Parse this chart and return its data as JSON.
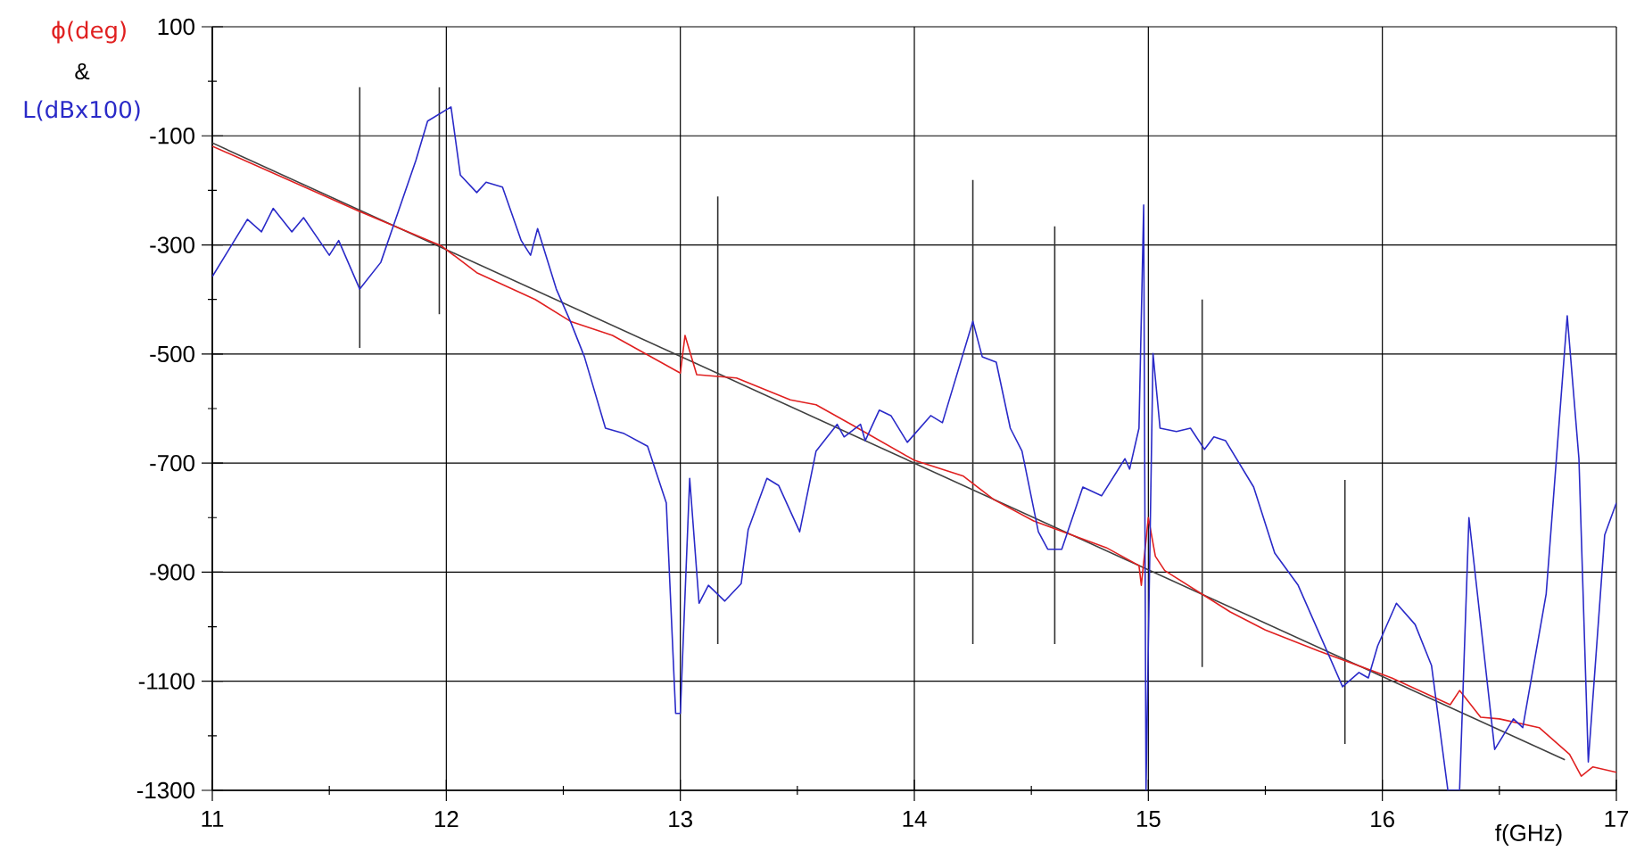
{
  "chart_data": {
    "type": "line",
    "xlabel": "f(GHz)",
    "ylabel": "&",
    "xlim": [
      11,
      17
    ],
    "ylim": [
      -1300,
      100
    ],
    "grid": true,
    "xticks": [
      11,
      {
        "value": 11.5,
        "label": null
      },
      12,
      {
        "value": 12.5,
        "label": null
      },
      13,
      {
        "value": 13.5,
        "label": null
      },
      14,
      {
        "value": 14.5,
        "label": null
      },
      15,
      {
        "value": 15.5,
        "label": null
      },
      16,
      {
        "value": 16.5,
        "label": null
      },
      17
    ],
    "yticks": [
      -1300,
      {
        "value": -1200,
        "label": null
      },
      -1100,
      {
        "value": -1000,
        "label": null
      },
      -900,
      {
        "value": -800,
        "label": null
      },
      -700,
      {
        "value": -600,
        "label": null
      },
      -500,
      {
        "value": -400,
        "label": null
      },
      -300,
      {
        "value": -200,
        "label": null
      },
      -100,
      {
        "value": 0,
        "label": null
      },
      100
    ],
    "series": [
      {
        "color": "#303030",
        "x": [
          11.63,
          11.63
        ],
        "values": [
          -11,
          -489
        ]
      },
      {
        "color": "#303030",
        "x": [
          11.97,
          11.97
        ],
        "values": [
          -11,
          -427
        ]
      },
      {
        "color": "#303030",
        "x": [
          13.16,
          13.16
        ],
        "values": [
          -211,
          -1032
        ]
      },
      {
        "color": "#303030",
        "x": [
          14.25,
          14.25
        ],
        "values": [
          -181,
          -1032
        ]
      },
      {
        "color": "#303030",
        "x": [
          14.6,
          14.6
        ],
        "values": [
          -266,
          -1032
        ]
      },
      {
        "color": "#303030",
        "x": [
          15.23,
          15.23
        ],
        "values": [
          -400,
          -1074
        ]
      },
      {
        "color": "#303030",
        "x": [
          15.84,
          15.84
        ],
        "values": [
          -731,
          -1215
        ]
      },
      {
        "color": "#404040",
        "x": [
          11,
          16.78
        ],
        "values": [
          -113,
          -1244
        ]
      },
      {
        "name": "ϕ(deg)",
        "color": "#e02020",
        "x": [
          11.0,
          11.62,
          11.98,
          12.13,
          12.38,
          12.53,
          12.71,
          13.0,
          13.02,
          13.07,
          13.24,
          13.47,
          13.58,
          13.73,
          14.0,
          14.21,
          14.34,
          14.51,
          14.82,
          14.96,
          14.97,
          15.0,
          15.03,
          15.07,
          15.35,
          15.5,
          15.73,
          16.04,
          16.29,
          16.33,
          16.42,
          16.5,
          16.67,
          16.8,
          16.85,
          16.9,
          17.0
        ],
        "values": [
          -119,
          -237,
          -302,
          -351,
          -400,
          -440,
          -466,
          -535,
          -466,
          -538,
          -544,
          -584,
          -593,
          -629,
          -695,
          -724,
          -767,
          -806,
          -855,
          -888,
          -924,
          -800,
          -871,
          -897,
          -973,
          -1006,
          -1045,
          -1094,
          -1143,
          -1117,
          -1166,
          -1169,
          -1185,
          -1234,
          -1274,
          -1257,
          -1267
        ]
      },
      {
        "name": "L(dBx100)",
        "color": "#2a2ac8",
        "x": [
          11.0,
          11.15,
          11.21,
          11.26,
          11.34,
          11.39,
          11.5,
          11.54,
          11.63,
          11.72,
          11.87,
          11.92,
          12.02,
          12.06,
          12.13,
          12.17,
          12.24,
          12.32,
          12.36,
          12.39,
          12.47,
          12.53,
          12.59,
          12.68,
          12.76,
          12.86,
          12.94,
          12.98,
          13.0,
          13.04,
          13.08,
          13.12,
          13.19,
          13.26,
          13.29,
          13.37,
          13.42,
          13.51,
          13.58,
          13.67,
          13.7,
          13.77,
          13.79,
          13.85,
          13.9,
          13.97,
          14.07,
          14.12,
          14.25,
          14.29,
          14.35,
          14.41,
          14.46,
          14.53,
          14.57,
          14.63,
          14.72,
          14.8,
          14.9,
          14.92,
          14.96,
          14.98,
          14.99,
          15.02,
          15.05,
          15.12,
          15.18,
          15.24,
          15.28,
          15.33,
          15.45,
          15.54,
          15.64,
          15.73,
          15.83,
          15.9,
          15.94,
          15.98,
          16.06,
          16.14,
          16.21,
          16.28,
          16.33,
          16.37,
          16.48,
          16.56,
          16.6,
          16.7,
          16.79,
          16.84,
          16.88,
          16.95,
          17.0
        ],
        "values": [
          -358,
          -253,
          -276,
          -233,
          -276,
          -250,
          -319,
          -292,
          -381,
          -332,
          -145,
          -73,
          -47,
          -172,
          -204,
          -185,
          -194,
          -292,
          -319,
          -270,
          -381,
          -440,
          -505,
          -636,
          -646,
          -669,
          -773,
          -1159,
          -1159,
          -728,
          -957,
          -924,
          -953,
          -921,
          -822,
          -728,
          -741,
          -826,
          -678,
          -629,
          -652,
          -629,
          -659,
          -603,
          -613,
          -662,
          -613,
          -626,
          -440,
          -505,
          -515,
          -636,
          -678,
          -826,
          -858,
          -858,
          -744,
          -760,
          -692,
          -711,
          -636,
          -227,
          -1300,
          -499,
          -636,
          -642,
          -636,
          -675,
          -652,
          -659,
          -744,
          -865,
          -924,
          -1012,
          -1110,
          -1084,
          -1094,
          -1035,
          -957,
          -996,
          -1071,
          -1300,
          -1300,
          -800,
          -1225,
          -1169,
          -1185,
          -940,
          -430,
          -692,
          -1248,
          -832,
          -773
        ]
      }
    ]
  }
}
